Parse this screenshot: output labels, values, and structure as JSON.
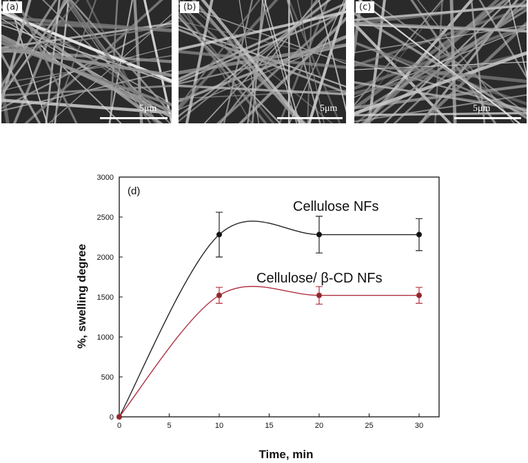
{
  "micrographs": [
    {
      "label": "(a)",
      "scale": "5μm"
    },
    {
      "label": "(b)",
      "scale": "5μm"
    },
    {
      "label": "(c)",
      "scale": "5μm"
    }
  ],
  "chart_data": {
    "type": "line",
    "panel_label": "(d)",
    "xlabel": "Time, min",
    "ylabel": "%, swelling degree",
    "xlim": [
      0,
      32
    ],
    "ylim": [
      0,
      3000
    ],
    "xticks": [
      0,
      5,
      10,
      15,
      20,
      25,
      30
    ],
    "yticks": [
      0,
      500,
      1000,
      1500,
      2000,
      2500,
      3000
    ],
    "grid": false,
    "series": [
      {
        "name": "Cellulose NFs",
        "color": "#222222",
        "x": [
          0,
          10,
          20,
          30
        ],
        "y": [
          0,
          2280,
          2280,
          2280
        ],
        "err": [
          0,
          280,
          230,
          200
        ]
      },
      {
        "name": "Cellulose/ β-CD NFs",
        "color": "#b03040",
        "x": [
          0,
          10,
          20,
          30
        ],
        "y": [
          0,
          1520,
          1520,
          1520
        ],
        "err": [
          0,
          100,
          110,
          100
        ]
      }
    ]
  }
}
